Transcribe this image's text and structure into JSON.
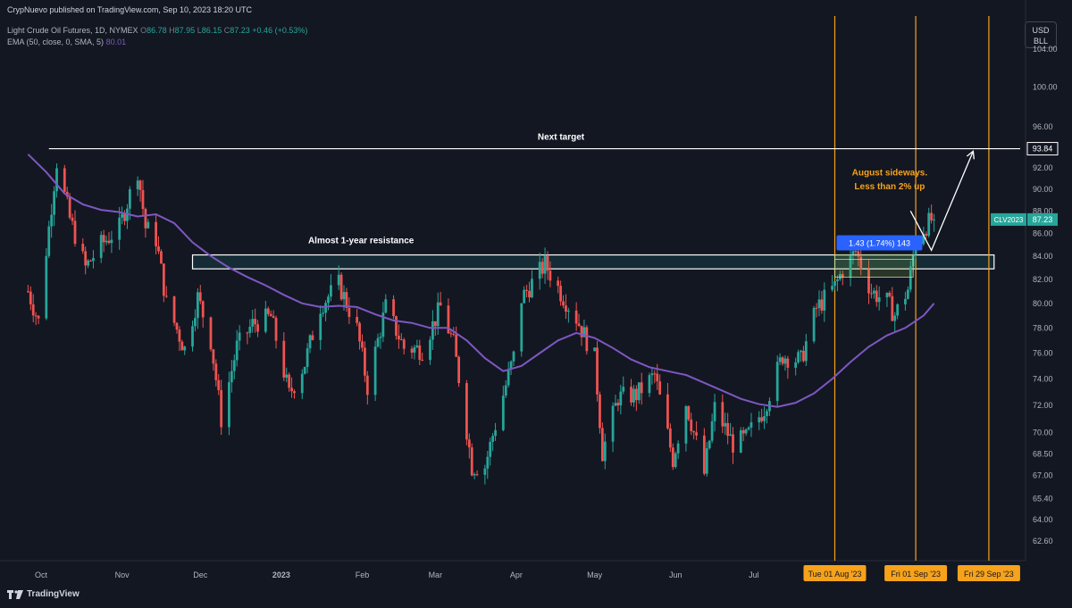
{
  "header": {
    "published": "CrypNuevo published on TradingView.com, Sep 10, 2023 18:20 UTC",
    "symbol_line": "Light Crude Oil Futures, 1D, NYMEX",
    "o_label": "O",
    "o_value": "86.78",
    "h_label": "H",
    "h_value": "87.95",
    "l_label": "L",
    "l_value": "86.15",
    "c_label": "C",
    "c_value": "87.23",
    "change": "+0.46 (+0.53%)",
    "ema_label": "EMA (50, close, 0, SMA, 5)",
    "ema_value": "80.01"
  },
  "currency": {
    "line1": "USD",
    "line2": "BLL"
  },
  "footer": {
    "brand": "TradingView"
  },
  "colors": {
    "background": "#131722",
    "up": "#26a69a",
    "down": "#ef5350",
    "ema": "#7e57c2",
    "orange": "#f7a21b",
    "white": "#ffffff",
    "measure_blue": "#2962ff",
    "zone": "#16303a"
  },
  "chart_data": {
    "type": "candlestick",
    "instrument": "CLV2023",
    "timeframe": "1D",
    "y_axis": {
      "ticks": [
        104.0,
        100.0,
        96.0,
        92.0,
        90.0,
        88.0,
        86.0,
        84.0,
        82.0,
        80.0,
        78.0,
        76.0,
        74.0,
        72.0,
        70.0,
        68.5,
        67.0,
        65.4,
        64.0,
        62.6
      ],
      "scale": "log"
    },
    "x_axis": {
      "ticks": [
        {
          "label": "Oct",
          "date": "2022-10-01"
        },
        {
          "label": "Nov",
          "date": "2022-11-01"
        },
        {
          "label": "Dec",
          "date": "2022-12-01"
        },
        {
          "label": "2023",
          "date": "2023-01-01",
          "bold": true
        },
        {
          "label": "Feb",
          "date": "2023-02-01"
        },
        {
          "label": "Mar",
          "date": "2023-03-01"
        },
        {
          "label": "Apr",
          "date": "2023-04-01"
        },
        {
          "label": "May",
          "date": "2023-05-01"
        },
        {
          "label": "Jun",
          "date": "2023-06-01"
        },
        {
          "label": "Jul",
          "date": "2023-07-01"
        }
      ],
      "highlight_labels": [
        {
          "label": "Tue 01 Aug '23",
          "date": "2023-08-01"
        },
        {
          "label": "Fri 01 Sep '23",
          "date": "2023-09-01"
        },
        {
          "label": "Fri 29 Sep '23",
          "date": "2023-09-29"
        }
      ]
    },
    "price_labels": [
      {
        "text": "93.84",
        "price": 93.84,
        "style": "white"
      },
      {
        "text": "87.23",
        "price": 87.23,
        "style": "green",
        "tag": "CLV2023"
      }
    ],
    "annotations": [
      {
        "kind": "hline",
        "price": 93.84,
        "from_date": "2022-10-04",
        "text": "Next target"
      },
      {
        "kind": "zone",
        "top": 84.1,
        "bottom": 82.9,
        "from_date": "2022-11-28",
        "to_date": "2023-10-01",
        "text": "Almost 1-year resistance"
      },
      {
        "kind": "vline",
        "date": "2023-08-01"
      },
      {
        "kind": "vline",
        "date": "2023-09-01"
      },
      {
        "kind": "vline",
        "date": "2023-09-29"
      },
      {
        "kind": "text",
        "text": "August sideways.",
        "date": "2023-08-22",
        "price": 91.3
      },
      {
        "kind": "text",
        "text": "Less than 2% up",
        "date": "2023-08-22",
        "price": 90.0
      },
      {
        "kind": "measure",
        "text": "1.43 (1.74%) 143",
        "from_date": "2023-08-01",
        "to_date": "2023-08-31",
        "top": 84.1,
        "bottom": 82.2
      },
      {
        "kind": "arrow_path",
        "points": [
          {
            "date": "2023-08-30",
            "price": 88.0
          },
          {
            "date": "2023-09-07",
            "price": 84.5
          },
          {
            "date": "2023-09-23",
            "price": 93.6
          }
        ]
      }
    ],
    "ema_series": [
      {
        "date": "2022-09-26",
        "value": 93.3
      },
      {
        "date": "2022-10-03",
        "value": 91.6
      },
      {
        "date": "2022-10-10",
        "value": 89.6
      },
      {
        "date": "2022-10-17",
        "value": 88.6
      },
      {
        "date": "2022-10-24",
        "value": 88.1
      },
      {
        "date": "2022-10-31",
        "value": 87.9
      },
      {
        "date": "2022-11-07",
        "value": 87.5
      },
      {
        "date": "2022-11-14",
        "value": 87.7
      },
      {
        "date": "2022-11-21",
        "value": 86.9
      },
      {
        "date": "2022-11-28",
        "value": 85.2
      },
      {
        "date": "2022-12-05",
        "value": 84.0
      },
      {
        "date": "2022-12-12",
        "value": 83.0
      },
      {
        "date": "2022-12-19",
        "value": 82.2
      },
      {
        "date": "2022-12-26",
        "value": 81.5
      },
      {
        "date": "2023-01-02",
        "value": 80.7
      },
      {
        "date": "2023-01-09",
        "value": 80.0
      },
      {
        "date": "2023-01-16",
        "value": 79.7
      },
      {
        "date": "2023-01-23",
        "value": 79.8
      },
      {
        "date": "2023-01-30",
        "value": 79.7
      },
      {
        "date": "2023-02-06",
        "value": 79.1
      },
      {
        "date": "2023-02-13",
        "value": 78.6
      },
      {
        "date": "2023-02-20",
        "value": 78.4
      },
      {
        "date": "2023-02-27",
        "value": 78.0
      },
      {
        "date": "2023-03-06",
        "value": 78.0
      },
      {
        "date": "2023-03-13",
        "value": 77.0
      },
      {
        "date": "2023-03-20",
        "value": 75.6
      },
      {
        "date": "2023-03-27",
        "value": 74.6
      },
      {
        "date": "2023-04-03",
        "value": 75.0
      },
      {
        "date": "2023-04-10",
        "value": 76.0
      },
      {
        "date": "2023-04-17",
        "value": 77.0
      },
      {
        "date": "2023-04-24",
        "value": 77.6
      },
      {
        "date": "2023-05-01",
        "value": 77.2
      },
      {
        "date": "2023-05-08",
        "value": 76.4
      },
      {
        "date": "2023-05-15",
        "value": 75.5
      },
      {
        "date": "2023-05-22",
        "value": 74.9
      },
      {
        "date": "2023-05-29",
        "value": 74.6
      },
      {
        "date": "2023-06-05",
        "value": 74.3
      },
      {
        "date": "2023-06-12",
        "value": 73.7
      },
      {
        "date": "2023-06-19",
        "value": 73.1
      },
      {
        "date": "2023-06-26",
        "value": 72.5
      },
      {
        "date": "2023-07-03",
        "value": 72.1
      },
      {
        "date": "2023-07-10",
        "value": 71.9
      },
      {
        "date": "2023-07-17",
        "value": 72.2
      },
      {
        "date": "2023-07-24",
        "value": 72.9
      },
      {
        "date": "2023-07-31",
        "value": 74.0
      },
      {
        "date": "2023-08-07",
        "value": 75.3
      },
      {
        "date": "2023-08-14",
        "value": 76.5
      },
      {
        "date": "2023-08-21",
        "value": 77.4
      },
      {
        "date": "2023-08-28",
        "value": 78.0
      },
      {
        "date": "2023-09-04",
        "value": 79.0
      },
      {
        "date": "2023-09-08",
        "value": 80.0
      }
    ],
    "close_path": [
      {
        "date": "2022-09-26",
        "value": 81.0
      },
      {
        "date": "2022-09-30",
        "value": 78.5
      },
      {
        "date": "2022-10-04",
        "value": 86.5
      },
      {
        "date": "2022-10-07",
        "value": 92.6
      },
      {
        "date": "2022-10-12",
        "value": 87.3
      },
      {
        "date": "2022-10-18",
        "value": 83.0
      },
      {
        "date": "2022-10-24",
        "value": 85.0
      },
      {
        "date": "2022-10-31",
        "value": 86.5
      },
      {
        "date": "2022-11-07",
        "value": 91.8
      },
      {
        "date": "2022-11-10",
        "value": 86.5
      },
      {
        "date": "2022-11-14",
        "value": 85.5
      },
      {
        "date": "2022-11-18",
        "value": 80.0
      },
      {
        "date": "2022-11-25",
        "value": 76.3
      },
      {
        "date": "2022-11-30",
        "value": 80.5
      },
      {
        "date": "2022-12-05",
        "value": 77.0
      },
      {
        "date": "2022-12-09",
        "value": 71.0
      },
      {
        "date": "2022-12-15",
        "value": 76.5
      },
      {
        "date": "2022-12-21",
        "value": 78.3
      },
      {
        "date": "2022-12-28",
        "value": 78.9
      },
      {
        "date": "2023-01-04",
        "value": 72.8
      },
      {
        "date": "2023-01-10",
        "value": 75.2
      },
      {
        "date": "2023-01-16",
        "value": 79.8
      },
      {
        "date": "2023-01-23",
        "value": 81.6
      },
      {
        "date": "2023-01-30",
        "value": 77.9
      },
      {
        "date": "2023-02-03",
        "value": 73.4
      },
      {
        "date": "2023-02-10",
        "value": 79.7
      },
      {
        "date": "2023-02-17",
        "value": 76.4
      },
      {
        "date": "2023-02-24",
        "value": 76.3
      },
      {
        "date": "2023-03-03",
        "value": 79.7
      },
      {
        "date": "2023-03-08",
        "value": 76.7
      },
      {
        "date": "2023-03-15",
        "value": 67.6
      },
      {
        "date": "2023-03-20",
        "value": 67.6
      },
      {
        "date": "2023-03-27",
        "value": 72.8
      },
      {
        "date": "2023-03-31",
        "value": 75.7
      },
      {
        "date": "2023-04-03",
        "value": 80.4
      },
      {
        "date": "2023-04-12",
        "value": 83.3
      },
      {
        "date": "2023-04-18",
        "value": 80.9
      },
      {
        "date": "2023-04-24",
        "value": 78.8
      },
      {
        "date": "2023-05-01",
        "value": 75.6
      },
      {
        "date": "2023-05-04",
        "value": 68.6
      },
      {
        "date": "2023-05-10",
        "value": 72.6
      },
      {
        "date": "2023-05-17",
        "value": 72.8
      },
      {
        "date": "2023-05-24",
        "value": 74.3
      },
      {
        "date": "2023-05-31",
        "value": 68.1
      },
      {
        "date": "2023-06-05",
        "value": 72.2
      },
      {
        "date": "2023-06-12",
        "value": 67.1
      },
      {
        "date": "2023-06-16",
        "value": 71.8
      },
      {
        "date": "2023-06-23",
        "value": 69.2
      },
      {
        "date": "2023-06-28",
        "value": 69.6
      },
      {
        "date": "2023-07-05",
        "value": 71.8
      },
      {
        "date": "2023-07-12",
        "value": 75.8
      },
      {
        "date": "2023-07-19",
        "value": 75.4
      },
      {
        "date": "2023-07-25",
        "value": 79.6
      },
      {
        "date": "2023-08-01",
        "value": 81.4
      },
      {
        "date": "2023-08-04",
        "value": 82.8
      },
      {
        "date": "2023-08-09",
        "value": 84.4
      },
      {
        "date": "2023-08-15",
        "value": 80.99
      },
      {
        "date": "2023-08-21",
        "value": 80.12
      },
      {
        "date": "2023-08-24",
        "value": 79.05
      },
      {
        "date": "2023-08-29",
        "value": 81.16
      },
      {
        "date": "2023-09-01",
        "value": 85.55
      },
      {
        "date": "2023-09-05",
        "value": 86.69
      },
      {
        "date": "2023-09-07",
        "value": 87.2
      },
      {
        "date": "2023-09-08",
        "value": 87.23
      }
    ]
  }
}
